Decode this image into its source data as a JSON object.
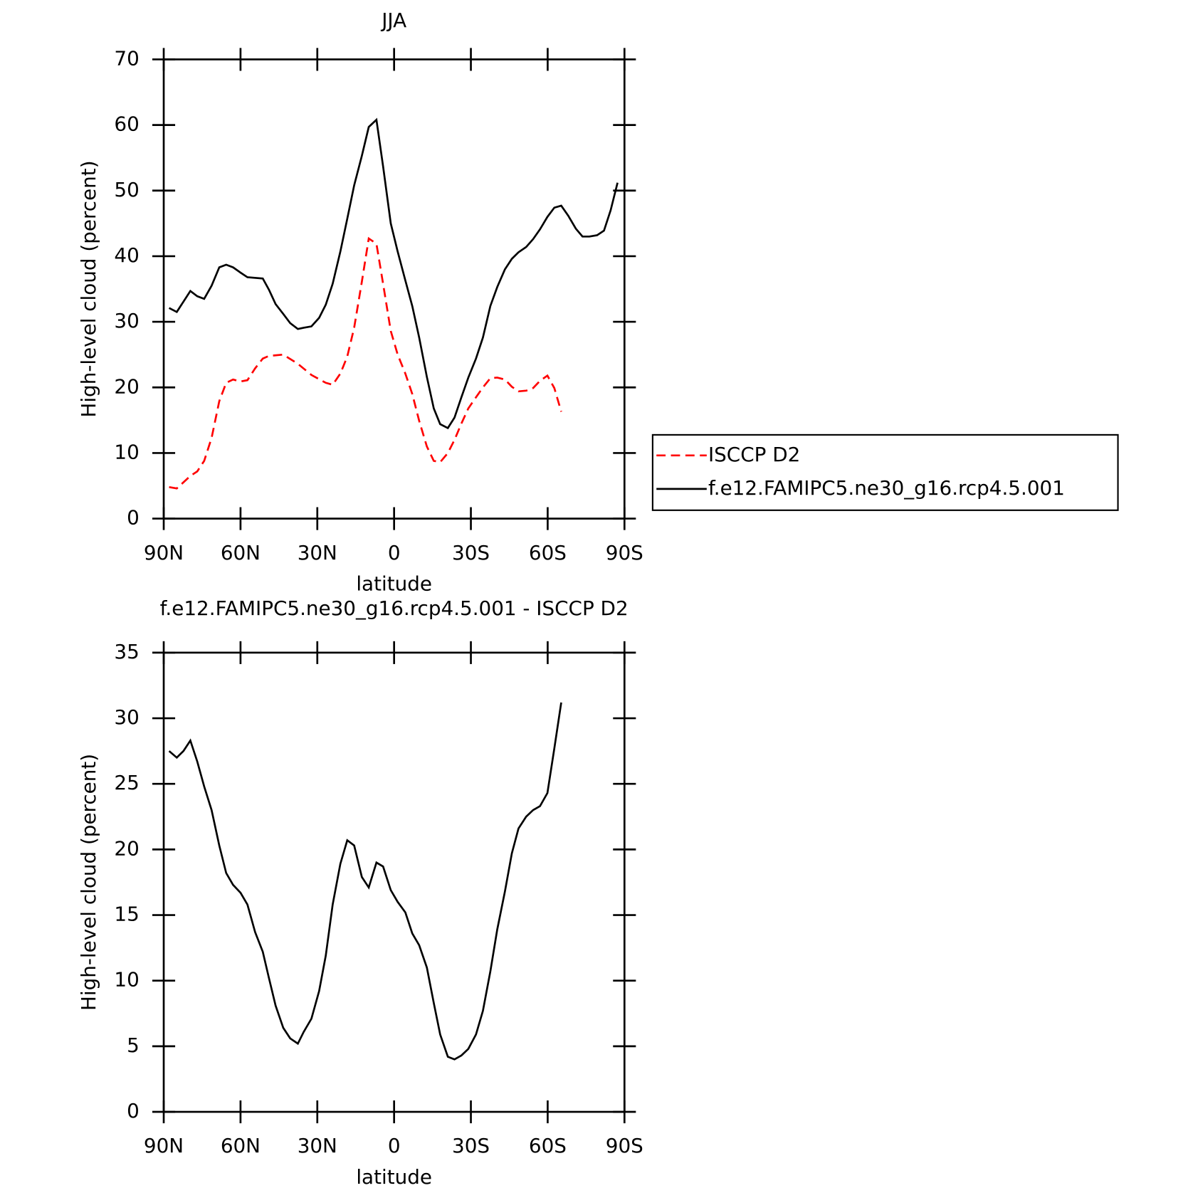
{
  "chart_data": [
    {
      "type": "line",
      "title": "JJA",
      "xlabel": "latitude",
      "ylabel": "High-level cloud (percent)",
      "xlim": [
        90,
        -90
      ],
      "ylim": [
        0,
        70
      ],
      "xticks": [
        {
          "value": 90,
          "label": "90N"
        },
        {
          "value": 60,
          "label": "60N"
        },
        {
          "value": 30,
          "label": "30N"
        },
        0,
        {
          "value": -30,
          "label": "30S"
        },
        {
          "value": -60,
          "label": "60S"
        },
        {
          "value": -90,
          "label": "90S"
        }
      ],
      "yticks": [
        0,
        10,
        20,
        30,
        40,
        50,
        60,
        70
      ],
      "legend": "right",
      "series": [
        {
          "name": "ISCCP D2",
          "color": "#ff0000",
          "linestyle": "dashed",
          "x": [
            87.9,
            84.9,
            79.6,
            76.9,
            74.2,
            71.3,
            68.3,
            65.6,
            62.9,
            60.0,
            57.3,
            54.3,
            51.3,
            48.9,
            43.3,
            37.6,
            32.3,
            26.7,
            24.0,
            21.0,
            18.3,
            15.6,
            12.6,
            9.9,
            6.9,
            4.3,
            1.3,
            -1.4,
            -4.4,
            -7.1,
            -9.8,
            -12.8,
            -15.5,
            -18.0,
            -21.0,
            -23.6,
            -26.3,
            -29.0,
            -32.0,
            -34.7,
            -37.6,
            -40.3,
            -43.3,
            -46.0,
            -48.6,
            -51.6,
            -54.3,
            -57.0,
            -59.9,
            -62.6,
            -65.3
          ],
          "values": [
            4.8,
            4.6,
            6.5,
            7.2,
            8.8,
            12.3,
            17.9,
            20.7,
            21.2,
            20.9,
            21.1,
            22.9,
            24.4,
            24.8,
            25.0,
            23.6,
            21.9,
            20.7,
            20.4,
            22.1,
            24.7,
            29.1,
            36.1,
            42.7,
            41.9,
            35.8,
            28.6,
            25.0,
            22.1,
            19.0,
            14.9,
            11.0,
            8.8,
            8.6,
            10.0,
            12.0,
            14.5,
            16.8,
            18.5,
            20.0,
            21.4,
            21.5,
            21.2,
            20.1,
            19.4,
            19.5,
            19.9,
            21.0,
            21.8,
            19.9,
            16.3
          ]
        },
        {
          "name": "f.e12.FAMIPC5.ne30_g16.rcp4.5.001",
          "color": "#000000",
          "linestyle": "solid",
          "x": [
            87.9,
            84.9,
            79.6,
            76.9,
            74.2,
            71.3,
            68.3,
            65.6,
            62.9,
            60.0,
            57.3,
            51.3,
            48.9,
            46.3,
            43.3,
            40.6,
            37.6,
            35.3,
            32.3,
            29.3,
            26.7,
            24.0,
            21.0,
            18.3,
            15.6,
            12.6,
            9.9,
            6.9,
            4.3,
            1.3,
            -1.4,
            -4.4,
            -7.1,
            -9.8,
            -12.8,
            -15.5,
            -18.0,
            -21.0,
            -23.6,
            -26.3,
            -29.0,
            -32.0,
            -34.7,
            -37.6,
            -40.3,
            -43.3,
            -46.0,
            -48.6,
            -51.6,
            -54.3,
            -57.0,
            -59.9,
            -62.6,
            -65.3,
            -68.0,
            -71.0,
            -73.6,
            -76.3,
            -79.3,
            -82.0,
            -84.6,
            -87.3
          ],
          "values": [
            32.1,
            31.5,
            34.7,
            33.9,
            33.5,
            35.5,
            38.3,
            38.7,
            38.3,
            37.5,
            36.8,
            36.6,
            34.9,
            32.7,
            31.2,
            29.8,
            28.9,
            29.1,
            29.3,
            30.6,
            32.6,
            35.8,
            40.7,
            45.7,
            50.8,
            55.3,
            59.7,
            60.8,
            53.7,
            45.0,
            40.7,
            36.3,
            32.4,
            27.6,
            21.6,
            16.8,
            14.4,
            13.8,
            15.4,
            18.5,
            21.5,
            24.4,
            27.6,
            32.4,
            35.3,
            38.0,
            39.6,
            40.6,
            41.4,
            42.6,
            44.1,
            46.0,
            47.4,
            47.7,
            46.2,
            44.2,
            43.0,
            43.0,
            43.2,
            43.9,
            47.0,
            51.2
          ]
        }
      ]
    },
    {
      "type": "line",
      "title": "f.e12.FAMIPC5.ne30_g16.rcp4.5.001 - ISCCP D2",
      "xlabel": "latitude",
      "ylabel": "High-level cloud (percent)",
      "xlim": [
        90,
        -90
      ],
      "ylim": [
        0,
        35
      ],
      "xticks": [
        {
          "value": 90,
          "label": "90N"
        },
        {
          "value": 60,
          "label": "60N"
        },
        {
          "value": 30,
          "label": "30N"
        },
        0,
        {
          "value": -30,
          "label": "30S"
        },
        {
          "value": -60,
          "label": "60S"
        },
        {
          "value": -90,
          "label": "90S"
        }
      ],
      "yticks": [
        0,
        5,
        10,
        15,
        20,
        25,
        30,
        35
      ],
      "series": [
        {
          "color": "#000000",
          "linestyle": "solid",
          "x": [
            87.9,
            84.9,
            82.3,
            79.6,
            76.9,
            74.2,
            71.3,
            68.3,
            65.6,
            62.9,
            60.0,
            57.3,
            54.3,
            51.3,
            48.9,
            46.3,
            43.3,
            40.6,
            37.6,
            35.3,
            32.3,
            29.3,
            26.7,
            24.0,
            21.0,
            18.3,
            15.6,
            12.6,
            9.9,
            6.9,
            4.3,
            1.3,
            -1.4,
            -4.4,
            -7.1,
            -9.8,
            -12.8,
            -15.5,
            -18.0,
            -21.0,
            -23.6,
            -26.3,
            -29.0,
            -32.0,
            -34.7,
            -37.6,
            -40.3,
            -43.3,
            -46.0,
            -48.6,
            -51.6,
            -54.3,
            -57.0,
            -59.9,
            -62.6,
            -65.3
          ],
          "values": [
            27.5,
            27.0,
            27.5,
            28.3,
            26.7,
            24.8,
            23.0,
            20.3,
            18.2,
            17.3,
            16.7,
            15.8,
            13.7,
            12.2,
            10.2,
            8.1,
            6.4,
            5.6,
            5.2,
            6.1,
            7.1,
            9.2,
            11.9,
            15.8,
            18.9,
            20.7,
            20.3,
            17.9,
            17.1,
            19.0,
            18.7,
            16.9,
            16.0,
            15.2,
            13.6,
            12.7,
            11.0,
            8.3,
            5.9,
            4.2,
            4.0,
            4.3,
            4.8,
            5.9,
            7.7,
            10.7,
            13.9,
            16.8,
            19.7,
            21.6,
            22.5,
            23.0,
            23.3,
            24.3,
            27.7,
            31.2
          ]
        }
      ]
    }
  ]
}
